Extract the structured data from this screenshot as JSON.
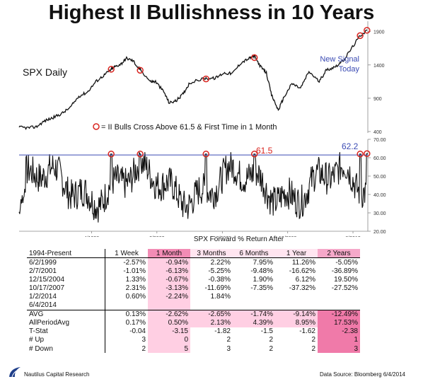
{
  "title": "Highest II Bullishness in 10 Years",
  "colors": {
    "line": "#111111",
    "marker": "#d9241f",
    "threshold": "#3b4bb3",
    "signal_text": "#3b4bb3",
    "label_61": "#d9241f"
  },
  "chart_data": [
    {
      "type": "line",
      "name": "SPX Daily",
      "y_ticks": [
        "1900",
        "1400",
        "900",
        "400"
      ],
      "ylim": [
        400,
        1950
      ],
      "annotation": "New Signal Today",
      "legend": "= II Bulls Cross Above 61.5 & First Time in 1 Month",
      "x": [
        1994.0,
        1994.5,
        1995.0,
        1995.5,
        1996.0,
        1996.5,
        1997.0,
        1997.5,
        1998.0,
        1998.5,
        1999.0,
        1999.4,
        1999.6,
        2000.0,
        2000.3,
        2000.7,
        2001.0,
        2001.1,
        2001.7,
        2002.0,
        2002.5,
        2002.8,
        2003.2,
        2003.6,
        2004.0,
        2004.9,
        2005.5,
        2006.0,
        2006.5,
        2007.0,
        2007.5,
        2007.8,
        2008.2,
        2008.5,
        2008.8,
        2009.2,
        2009.5,
        2010.0,
        2010.5,
        2011.0,
        2011.6,
        2012.0,
        2012.5,
        2013.0,
        2013.5,
        2014.0,
        2014.4
      ],
      "y": [
        465,
        455,
        470,
        560,
        610,
        670,
        760,
        930,
        990,
        1150,
        1250,
        1335,
        1370,
        1420,
        1500,
        1460,
        1350,
        1335,
        1150,
        1150,
        990,
        830,
        860,
        960,
        1130,
        1200,
        1200,
        1280,
        1270,
        1430,
        1500,
        1530,
        1360,
        1280,
        950,
        720,
        900,
        1120,
        1050,
        1300,
        1150,
        1320,
        1370,
        1460,
        1650,
        1840,
        1920
      ],
      "signals": [
        [
          1999.4,
          1335
        ],
        [
          2001.1,
          1320
        ],
        [
          2004.96,
          1190
        ],
        [
          2007.8,
          1510
        ],
        [
          2014.0,
          1840
        ],
        [
          2014.4,
          1920
        ]
      ]
    },
    {
      "type": "line",
      "name": "II Bulls",
      "y_ticks": [
        "70.00",
        "60.00",
        "50.00",
        "40.00",
        "30.00",
        "20.00"
      ],
      "ylim": [
        20,
        70
      ],
      "x_ticks": [
        "4/1998",
        "2/2002",
        "12/2005",
        "10/2009",
        "8/2013"
      ],
      "threshold": 61.5,
      "threshold_label": "61.5",
      "last_label": "62.2",
      "signals": [
        [
          1999.4,
          62
        ],
        [
          2001.1,
          62
        ],
        [
          2004.96,
          62
        ],
        [
          2007.8,
          62
        ],
        [
          2014.0,
          62
        ],
        [
          2014.4,
          62.2
        ]
      ]
    }
  ],
  "table": {
    "title": "SPX Forward % Return After",
    "headers": [
      "1994-Present",
      "1 Week",
      "1 Month",
      "3 Months",
      "6 Months",
      "1 Year",
      "2 Years"
    ],
    "rows": [
      [
        "6/2/1999",
        "-2.57%",
        "-0.94%",
        "2.22%",
        "7.95%",
        "11.26%",
        "-5.05%"
      ],
      [
        "2/7/2001",
        "-1.01%",
        "-6.13%",
        "-5.25%",
        "-9.48%",
        "-16.62%",
        "-36.89%"
      ],
      [
        "12/15/2004",
        "1.33%",
        "-0.67%",
        "-0.38%",
        "1.90%",
        "6.12%",
        "19.50%"
      ],
      [
        "10/17/2007",
        "2.31%",
        "-3.13%",
        "-11.69%",
        "-7.35%",
        "-37.32%",
        "-27.52%"
      ],
      [
        "1/2/2014",
        "0.60%",
        "-2.24%",
        "1.84%",
        "",
        "",
        ""
      ],
      [
        "6/4/2014",
        "",
        "",
        "",
        "",
        "",
        ""
      ]
    ],
    "stats": [
      [
        "AVG",
        "0.13%",
        "-2.62%",
        "-2.65%",
        "-1.74%",
        "-9.14%",
        "-12.49%"
      ],
      [
        "AllPeriodAvg",
        "0.17%",
        "0.50%",
        "2.13%",
        "4.39%",
        "8.95%",
        "17.53%"
      ],
      [
        "T-Stat",
        "-0.04",
        "-3.15",
        "-1.82",
        "-1.5",
        "-1.62",
        "-2.38"
      ],
      [
        "# Up",
        "3",
        "0",
        "2",
        "2",
        "2",
        "1"
      ],
      [
        "# Down",
        "2",
        "5",
        "3",
        "2",
        "2",
        "3"
      ]
    ]
  },
  "footer": {
    "left": "Nautilus Capital Research",
    "right": "Data Source: Bloomberg  6/4/2014"
  }
}
